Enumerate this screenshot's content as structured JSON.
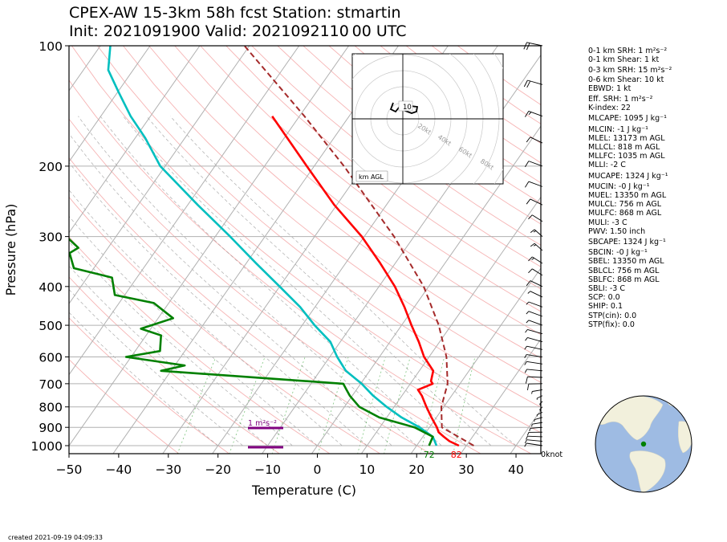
{
  "header": {
    "title_line1": "CPEX-AW 15-3km  58h fcst  Station: stmartin",
    "title_line2": "Init: 2021091900  Valid: 2021092110 00 UTC"
  },
  "chart_data": {
    "type": "line",
    "xlabel": "Temperature (C)",
    "ylabel": "Pressure (hPa)",
    "xlim": [
      -50,
      45
    ],
    "ylim": [
      1050,
      100
    ],
    "y_scale": "log",
    "skew": true,
    "x_ticks": [
      "−50",
      "−40",
      "−30",
      "−20",
      "−10",
      "0",
      "10",
      "20",
      "30",
      "40"
    ],
    "y_ticks": [
      "100",
      "200",
      "300",
      "400",
      "500",
      "600",
      "700",
      "800",
      "900",
      "1000"
    ],
    "series": [
      {
        "role": "temperature",
        "color": "#ff0000",
        "p": [
          1000,
          975,
          950,
          925,
          900,
          850,
          800,
          750,
          725,
          700,
          690,
          650,
          600,
          550,
          500,
          450,
          400,
          350,
          300,
          250,
          200,
          150
        ],
        "t": [
          28.5,
          26.0,
          24.2,
          22.5,
          21.5,
          19.0,
          16.5,
          14.0,
          12.4,
          14.5,
          13.8,
          12.8,
          9.0,
          5.8,
          2.0,
          -2.0,
          -6.8,
          -13.0,
          -20.5,
          -30.5,
          -41.5,
          -55.5
        ]
      },
      {
        "role": "dewpoint",
        "color": "#00bfbf",
        "p": [
          1000,
          950,
          900,
          850,
          800,
          750,
          700,
          650,
          600,
          550,
          500,
          450,
          400,
          350,
          300,
          250,
          200,
          170,
          150,
          130,
          115,
          100
        ],
        "t": [
          24.0,
          22.0,
          18.0,
          13.0,
          8.5,
          4.2,
          0.2,
          -4.8,
          -8.5,
          -12.0,
          -17.5,
          -23.0,
          -30.0,
          -38.0,
          -47.0,
          -58.0,
          -71.0,
          -78.0,
          -84.0,
          -90.0,
          -95.0,
          -98.0
        ]
      },
      {
        "role": "wetbulb",
        "color": "#008000",
        "p": [
          1000,
          950,
          900,
          850,
          800,
          750,
          725,
          700,
          650,
          630,
          600,
          580,
          530,
          510,
          480,
          440,
          420,
          380,
          360,
          330,
          320,
          300,
          260,
          240,
          200,
          160,
          150,
          130,
          120,
          100
        ],
        "t": [
          22.5,
          22.0,
          17.0,
          8.5,
          3.0,
          -0.5,
          -2.0,
          -3.5,
          -42.0,
          -38.0,
          -51.0,
          -45.0,
          -47.0,
          -52.0,
          -47.0,
          -53.0,
          -62.0,
          -65.0,
          -74.0,
          -77.0,
          -76.0,
          -80.0,
          -89.0,
          -100.0,
          -107.0,
          -107.0,
          -106.0,
          -112.0,
          -113.0,
          -118.0
        ]
      },
      {
        "role": "parcel",
        "color": "#a52a2a",
        "dashed": true,
        "p": [
          1000,
          900,
          800,
          700,
          600,
          500,
          400,
          300,
          200,
          150,
          100
        ],
        "t": [
          31.5,
          22.5,
          19.5,
          17.5,
          13.5,
          7.5,
          -1.0,
          -14.0,
          -34.0,
          -49.0,
          -71.0
        ]
      }
    ],
    "surface_labels": [
      {
        "text": "72",
        "color": "#008000",
        "temp": 22.5
      },
      {
        "text": "82",
        "color": "#ff0000",
        "temp": 28.0
      }
    ],
    "srh_annotation": {
      "text": "1 m²s⁻²",
      "color": "#800080"
    },
    "hodograph": {
      "ring_labels": [
        "20kt",
        "40kt",
        "60kt",
        "80kt"
      ],
      "center_label": "10",
      "corner_label": "km AGL"
    },
    "wind_barbs": {
      "label": "0knot",
      "p": [
        1000,
        975,
        950,
        925,
        900,
        875,
        850,
        825,
        800,
        775,
        750,
        725,
        700,
        675,
        650,
        625,
        600,
        575,
        550,
        525,
        500,
        475,
        450,
        425,
        400,
        375,
        350,
        325,
        300,
        275,
        250,
        225,
        200,
        175,
        150,
        125,
        100
      ],
      "speed": [
        5,
        5,
        5,
        5,
        5,
        5,
        5,
        5,
        10,
        10,
        5,
        5,
        10,
        10,
        5,
        5,
        5,
        5,
        5,
        5,
        5,
        5,
        5,
        5,
        10,
        10,
        15,
        15,
        15,
        10,
        10,
        10,
        10,
        10,
        15,
        20,
        20
      ],
      "dir": [
        90,
        100,
        110,
        120,
        130,
        140,
        150,
        160,
        170,
        170,
        160,
        140,
        120,
        110,
        100,
        90,
        90,
        80,
        70,
        70,
        60,
        60,
        60,
        50,
        50,
        40,
        40,
        30,
        30,
        40,
        50,
        60,
        60,
        50,
        60,
        70,
        80
      ]
    }
  },
  "stats": [
    "0-1 km SRH: 1 m²s⁻²",
    "0-1 km Shear: 1 kt",
    "0-3 km SRH: 15 m²s⁻²",
    "0-6 km Shear: 10 kt",
    "EBWD: 1 kt",
    "Eff. SRH: 1 m²s⁻²",
    "K-index: 22",
    "MLCAPE: 1095 J kg⁻¹",
    "MLCIN: -1 J kg⁻¹",
    "MLEL: 13173 m AGL",
    "MLLCL: 818 m AGL",
    "MLLFC: 1035 m AGL",
    "MLLI: -2 C",
    "MUCAPE: 1324 J kg⁻¹",
    "MUCIN: -0 J kg⁻¹",
    "MUEL: 13350 m AGL",
    "MULCL: 756 m AGL",
    "MULFC: 868 m AGL",
    "MULI: -3 C",
    "PWV: 1.50 inch",
    "SBCAPE: 1324 J kg⁻¹",
    "SBCIN: -0 J kg⁻¹",
    "SBEL: 13350 m AGL",
    "SBLCL: 756 m AGL",
    "SBLFC: 868 m AGL",
    "SBLI: -3 C",
    "SCP: 0.0",
    "SHIP: 0.1",
    "STP(cin): 0.0",
    "STP(fix): 0.0"
  ],
  "footer": {
    "created": "created 2021-09-19 04:09:33"
  },
  "colors": {
    "ocean": "#9ebbe3",
    "land": "#f2f0dc",
    "station_marker": "#008000"
  }
}
